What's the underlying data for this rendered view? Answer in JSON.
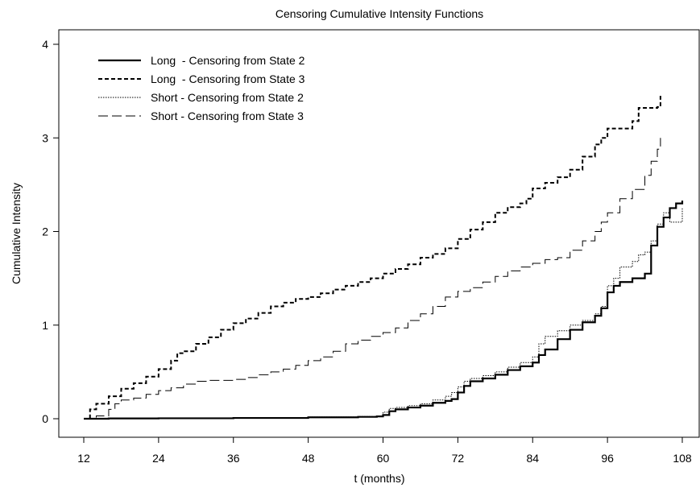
{
  "chart_data": {
    "type": "line",
    "title": "Censoring Cumulative Intensity Functions",
    "xlabel": "t (months)",
    "ylabel": "Cumulative Intensity",
    "xlim": [
      12,
      108
    ],
    "ylim": [
      0,
      4
    ],
    "x_ticks": [
      12,
      24,
      36,
      48,
      60,
      72,
      84,
      96,
      108
    ],
    "y_ticks": [
      0,
      1,
      2,
      3,
      4
    ],
    "grid": false,
    "legend_position": "top-left",
    "step": true,
    "series": [
      {
        "name": "Long  - Censoring from State 2",
        "style": "solid-thick",
        "points": [
          [
            12,
            0
          ],
          [
            16,
            0.003
          ],
          [
            24,
            0.005
          ],
          [
            36,
            0.008
          ],
          [
            48,
            0.015
          ],
          [
            56,
            0.02
          ],
          [
            59,
            0.025
          ],
          [
            60,
            0.04
          ],
          [
            61,
            0.08
          ],
          [
            62,
            0.1
          ],
          [
            64,
            0.12
          ],
          [
            66,
            0.14
          ],
          [
            68,
            0.17
          ],
          [
            70,
            0.19
          ],
          [
            71,
            0.21
          ],
          [
            72,
            0.28
          ],
          [
            73,
            0.35
          ],
          [
            74,
            0.4
          ],
          [
            76,
            0.43
          ],
          [
            78,
            0.47
          ],
          [
            80,
            0.52
          ],
          [
            82,
            0.56
          ],
          [
            84,
            0.6
          ],
          [
            85,
            0.68
          ],
          [
            86,
            0.74
          ],
          [
            88,
            0.85
          ],
          [
            90,
            0.95
          ],
          [
            92,
            1.03
          ],
          [
            94,
            1.1
          ],
          [
            95,
            1.18
          ],
          [
            96,
            1.35
          ],
          [
            97,
            1.42
          ],
          [
            98,
            1.46
          ],
          [
            100,
            1.5
          ],
          [
            102,
            1.55
          ],
          [
            103,
            1.85
          ],
          [
            104,
            2.05
          ],
          [
            105,
            2.15
          ],
          [
            106,
            2.25
          ],
          [
            107,
            2.3
          ],
          [
            108,
            2.33
          ]
        ]
      },
      {
        "name": "Long  - Censoring from State 3",
        "style": "short-dash",
        "points": [
          [
            12,
            0
          ],
          [
            13,
            0.1
          ],
          [
            14,
            0.16
          ],
          [
            16,
            0.24
          ],
          [
            18,
            0.32
          ],
          [
            20,
            0.38
          ],
          [
            22,
            0.45
          ],
          [
            24,
            0.53
          ],
          [
            26,
            0.62
          ],
          [
            27,
            0.7
          ],
          [
            28,
            0.72
          ],
          [
            30,
            0.8
          ],
          [
            32,
            0.87
          ],
          [
            34,
            0.95
          ],
          [
            36,
            1.02
          ],
          [
            38,
            1.07
          ],
          [
            40,
            1.13
          ],
          [
            42,
            1.2
          ],
          [
            44,
            1.24
          ],
          [
            46,
            1.28
          ],
          [
            48,
            1.3
          ],
          [
            50,
            1.34
          ],
          [
            52,
            1.38
          ],
          [
            54,
            1.42
          ],
          [
            56,
            1.46
          ],
          [
            58,
            1.5
          ],
          [
            60,
            1.55
          ],
          [
            62,
            1.6
          ],
          [
            64,
            1.65
          ],
          [
            66,
            1.72
          ],
          [
            68,
            1.76
          ],
          [
            70,
            1.82
          ],
          [
            72,
            1.92
          ],
          [
            74,
            2.02
          ],
          [
            76,
            2.1
          ],
          [
            78,
            2.2
          ],
          [
            80,
            2.26
          ],
          [
            82,
            2.3
          ],
          [
            83,
            2.35
          ],
          [
            84,
            2.46
          ],
          [
            86,
            2.52
          ],
          [
            88,
            2.58
          ],
          [
            90,
            2.66
          ],
          [
            92,
            2.8
          ],
          [
            94,
            2.93
          ],
          [
            95,
            3.0
          ],
          [
            96,
            3.1
          ],
          [
            99,
            3.1
          ],
          [
            100,
            3.18
          ],
          [
            101,
            3.32
          ],
          [
            103,
            3.32
          ],
          [
            104,
            3.33
          ],
          [
            104.5,
            3.45
          ]
        ]
      },
      {
        "name": "Short - Censoring from State 2",
        "style": "dotted",
        "points": [
          [
            12,
            0
          ],
          [
            20,
            0.002
          ],
          [
            36,
            0.008
          ],
          [
            48,
            0.018
          ],
          [
            56,
            0.024
          ],
          [
            59,
            0.03
          ],
          [
            60,
            0.07
          ],
          [
            61,
            0.11
          ],
          [
            62,
            0.12
          ],
          [
            64,
            0.14
          ],
          [
            66,
            0.16
          ],
          [
            68,
            0.2
          ],
          [
            70,
            0.24
          ],
          [
            71,
            0.28
          ],
          [
            72,
            0.34
          ],
          [
            73,
            0.4
          ],
          [
            74,
            0.43
          ],
          [
            76,
            0.46
          ],
          [
            78,
            0.5
          ],
          [
            80,
            0.55
          ],
          [
            82,
            0.6
          ],
          [
            84,
            0.66
          ],
          [
            85,
            0.8
          ],
          [
            86,
            0.88
          ],
          [
            88,
            0.94
          ],
          [
            90,
            1.0
          ],
          [
            92,
            1.05
          ],
          [
            94,
            1.12
          ],
          [
            95,
            1.2
          ],
          [
            96,
            1.42
          ],
          [
            97,
            1.5
          ],
          [
            98,
            1.62
          ],
          [
            100,
            1.68
          ],
          [
            101,
            1.75
          ],
          [
            102,
            1.78
          ],
          [
            103,
            1.9
          ],
          [
            104,
            2.08
          ],
          [
            105,
            2.2
          ],
          [
            106,
            2.1
          ],
          [
            107,
            2.1
          ],
          [
            108,
            2.25
          ]
        ]
      },
      {
        "name": "Short - Censoring from State 3",
        "style": "long-dash",
        "points": [
          [
            12,
            0
          ],
          [
            14,
            0.03
          ],
          [
            16,
            0.1
          ],
          [
            17,
            0.16
          ],
          [
            18,
            0.2
          ],
          [
            20,
            0.22
          ],
          [
            22,
            0.26
          ],
          [
            24,
            0.3
          ],
          [
            26,
            0.33
          ],
          [
            28,
            0.37
          ],
          [
            30,
            0.4
          ],
          [
            32,
            0.41
          ],
          [
            36,
            0.42
          ],
          [
            38,
            0.44
          ],
          [
            40,
            0.47
          ],
          [
            42,
            0.5
          ],
          [
            44,
            0.53
          ],
          [
            46,
            0.57
          ],
          [
            48,
            0.62
          ],
          [
            50,
            0.66
          ],
          [
            52,
            0.72
          ],
          [
            54,
            0.8
          ],
          [
            56,
            0.84
          ],
          [
            58,
            0.88
          ],
          [
            60,
            0.92
          ],
          [
            62,
            0.97
          ],
          [
            64,
            1.05
          ],
          [
            66,
            1.12
          ],
          [
            68,
            1.2
          ],
          [
            70,
            1.3
          ],
          [
            72,
            1.36
          ],
          [
            74,
            1.4
          ],
          [
            76,
            1.46
          ],
          [
            78,
            1.52
          ],
          [
            80,
            1.58
          ],
          [
            82,
            1.62
          ],
          [
            84,
            1.66
          ],
          [
            86,
            1.7
          ],
          [
            88,
            1.72
          ],
          [
            90,
            1.8
          ],
          [
            92,
            1.9
          ],
          [
            94,
            2.0
          ],
          [
            95,
            2.1
          ],
          [
            96,
            2.2
          ],
          [
            98,
            2.35
          ],
          [
            100,
            2.45
          ],
          [
            102,
            2.6
          ],
          [
            103,
            2.75
          ],
          [
            104,
            2.88
          ],
          [
            104.5,
            3.0
          ]
        ]
      }
    ]
  }
}
